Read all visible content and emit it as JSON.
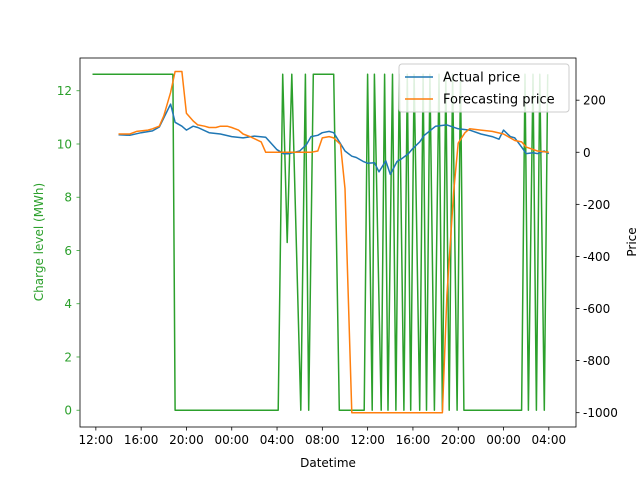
{
  "chart_data": {
    "type": "line",
    "xlabel": "Datetime",
    "ylabel_left": "Charge level (MWh)",
    "ylabel_right": "Price",
    "x_ticks": [
      "12:00",
      "16:00",
      "20:00",
      "00:00",
      "04:00",
      "08:00",
      "12:00",
      "16:00",
      "20:00",
      "00:00",
      "04:00"
    ],
    "x_tick_hours": [
      12,
      16,
      20,
      24,
      28,
      32,
      36,
      40,
      44,
      48,
      52
    ],
    "xlim_hours": [
      10.6,
      54.4
    ],
    "ylim_left": [
      -0.63,
      13.23
    ],
    "ylim_right": [
      -1055,
      362
    ],
    "left_ticks": [
      0,
      2,
      4,
      6,
      8,
      10,
      12
    ],
    "right_ticks": [
      -1000,
      -800,
      -600,
      -400,
      -200,
      0,
      200
    ],
    "legend": {
      "placement": "upper right",
      "entries": [
        "Actual price",
        "Forecasting price"
      ]
    },
    "colors": {
      "actual": "#1f77b4",
      "forecast": "#ff7f0e",
      "charge": "#2ca02c",
      "left_axis": "#2ca02c"
    },
    "series": [
      {
        "name": "Actual price",
        "axis": "right",
        "x": [
          14.0,
          15.0,
          16.0,
          17.0,
          17.6,
          18.0,
          18.6,
          19.0,
          19.6,
          20.0,
          20.6,
          21.0,
          22.0,
          23.0,
          24.0,
          25.0,
          26.0,
          27.0,
          28.0,
          28.6,
          29.0,
          30.0,
          30.6,
          31.0,
          31.6,
          32.0,
          32.6,
          33.0,
          34.0,
          34.6,
          35.0,
          35.6,
          36.0,
          36.6,
          37.0,
          37.6,
          38.0,
          38.6,
          39.0,
          39.6,
          40.0,
          40.6,
          41.0,
          42.0,
          43.0,
          44.0,
          45.0,
          46.0,
          47.0,
          47.6,
          48.0,
          48.6,
          49.0,
          49.6,
          50.0,
          50.6,
          51.0,
          51.6,
          52.0
        ],
        "y": [
          67,
          65,
          75,
          82,
          97,
          132,
          185,
          115,
          100,
          85,
          100,
          95,
          75,
          70,
          60,
          55,
          62,
          58,
          10,
          -6,
          -6,
          5,
          30,
          60,
          65,
          75,
          80,
          75,
          5,
          -15,
          -20,
          -35,
          -42,
          -40,
          -75,
          -33,
          -85,
          -35,
          -25,
          -5,
          15,
          40,
          65,
          100,
          105,
          90,
          85,
          70,
          60,
          50,
          85,
          60,
          55,
          20,
          -5,
          -2,
          -5,
          5,
          -5
        ]
      },
      {
        "name": "Forecasting price",
        "axis": "right",
        "x": [
          14.0,
          14.6,
          15.0,
          15.6,
          16.0,
          16.6,
          17.0,
          17.6,
          18.0,
          18.6,
          19.0,
          19.6,
          20.0,
          20.6,
          21.0,
          21.6,
          22.0,
          22.6,
          23.0,
          23.6,
          24.0,
          24.6,
          25.0,
          25.6,
          26.0,
          26.6,
          27.0,
          27.6,
          28.0,
          29.0,
          30.0,
          31.0,
          31.6,
          32.0,
          32.6,
          33.0,
          33.6,
          34.0,
          34.6,
          35.0,
          35.6,
          36.0,
          36.6,
          37.0,
          38.0,
          39.0,
          40.0,
          41.0,
          42.0,
          42.6,
          43.0,
          43.6,
          44.0,
          44.6,
          45.0,
          46.0,
          47.0,
          48.0,
          48.6,
          49.0,
          49.6,
          50.0,
          51.0,
          52.0
        ],
        "y": [
          70,
          70,
          70,
          80,
          82,
          85,
          90,
          100,
          140,
          230,
          310,
          310,
          150,
          120,
          105,
          100,
          95,
          95,
          100,
          100,
          95,
          85,
          70,
          60,
          52,
          40,
          0,
          0,
          0,
          0,
          0,
          0,
          5,
          55,
          60,
          55,
          30,
          -140,
          -1000,
          -1000,
          -1000,
          -1000,
          -1000,
          -1000,
          -1000,
          -1000,
          -1000,
          -1000,
          -1000,
          -1000,
          -550,
          -150,
          35,
          75,
          90,
          85,
          80,
          70,
          55,
          45,
          40,
          20,
          5,
          0
        ]
      },
      {
        "name": "Charge level",
        "axis": "left",
        "x": [
          11.7,
          17.9,
          18.8,
          19.0,
          19.6,
          20.0,
          24.0,
          27.0,
          27.2,
          28.1,
          28.5,
          28.9,
          29.3,
          30.1,
          30.5,
          30.8,
          31.2,
          31.5,
          33.0,
          33.5,
          34.0,
          34.8,
          35.0,
          35.7,
          36.0,
          36.4,
          36.6,
          37.2,
          37.5,
          37.8,
          38.2,
          38.5,
          38.8,
          39.2,
          39.5,
          39.8,
          40.1,
          40.6,
          40.9,
          41.2,
          41.5,
          41.9,
          42.3,
          42.6,
          42.9,
          43.2,
          43.5,
          43.9,
          44.2,
          44.5,
          44.8,
          45.1,
          45.6,
          47.0,
          48.4,
          49.0,
          49.3,
          49.6,
          49.9,
          50.2,
          50.6,
          50.9,
          51.2,
          51.6,
          51.9
        ],
        "y": [
          12.62,
          12.62,
          12.62,
          0,
          0,
          0,
          0,
          0,
          0,
          0,
          12.62,
          6.3,
          12.62,
          0,
          12.62,
          0,
          12.62,
          12.62,
          12.62,
          0,
          0,
          0,
          0,
          0,
          12.62,
          0,
          12.62,
          0,
          12.62,
          0,
          12.62,
          0,
          12.62,
          0,
          12.62,
          0,
          12.62,
          0,
          12.62,
          0,
          12.62,
          0,
          12.62,
          0,
          12.62,
          0,
          12.62,
          0,
          12.62,
          0,
          0,
          0,
          0,
          0,
          0,
          0,
          0,
          0,
          12.62,
          0,
          12.62,
          0,
          12.62,
          0,
          12.62
        ]
      }
    ]
  }
}
